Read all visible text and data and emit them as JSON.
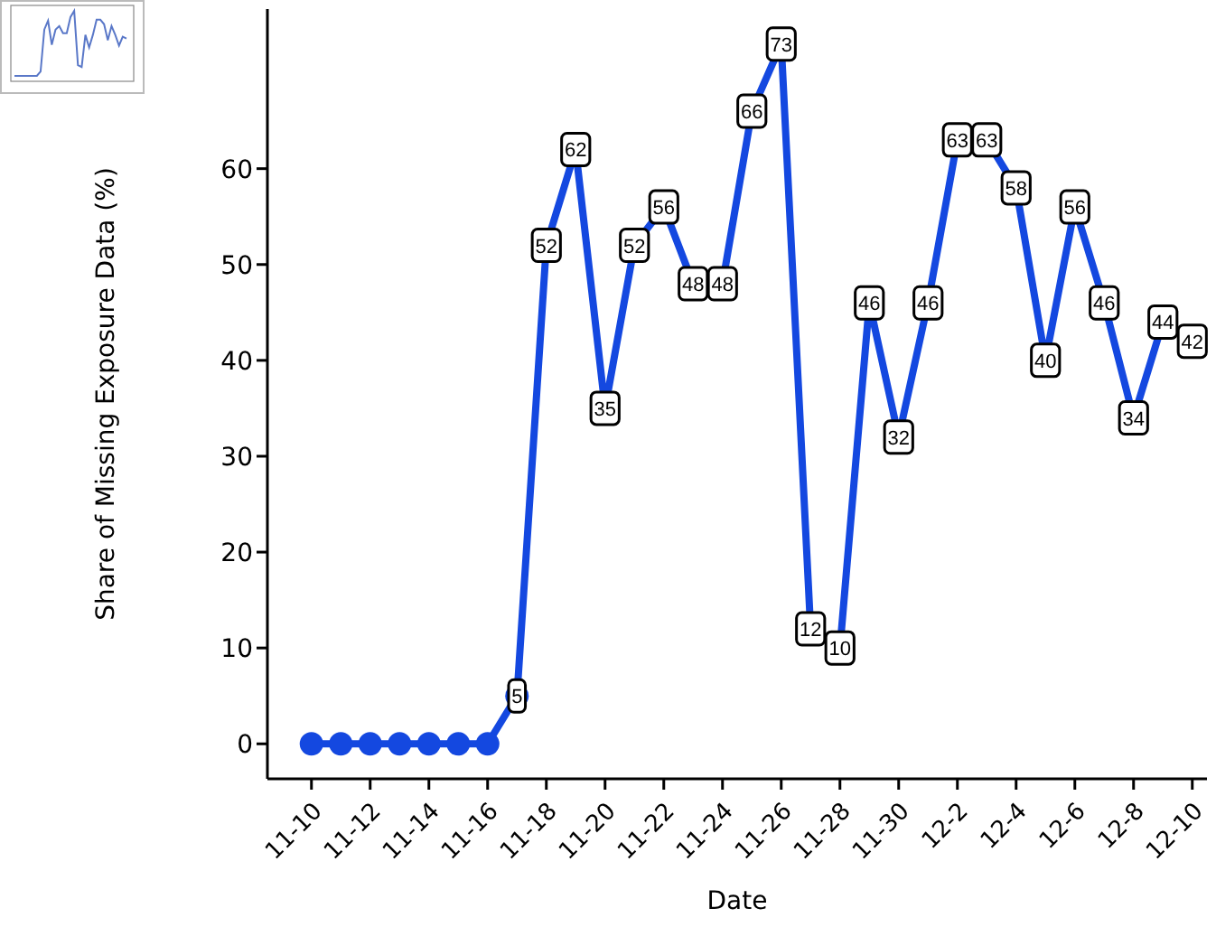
{
  "chart_data": {
    "type": "line",
    "xlabel": "Date",
    "ylabel": "Share of Missing Exposure Data (%)",
    "categories": [
      "11-10",
      null,
      "11-12",
      null,
      "11-14",
      null,
      "11-16",
      null,
      "11-18",
      null,
      "11-20",
      null,
      "11-22",
      null,
      "11-24",
      null,
      "11-26",
      null,
      "11-28",
      null,
      "11-30",
      null,
      "12-2",
      null,
      "12-4",
      null,
      "12-6",
      null,
      "12-8",
      null,
      "12-10"
    ],
    "series": [
      {
        "color": "#1448e0",
        "values": [
          0,
          0,
          0,
          0,
          0,
          0,
          0,
          5,
          52,
          62,
          35,
          52,
          56,
          48,
          48,
          66,
          73,
          12,
          10,
          46,
          32,
          46,
          63,
          63,
          58,
          40,
          56,
          46,
          34,
          44,
          42
        ],
        "value_labels": [
          null,
          null,
          null,
          null,
          null,
          null,
          null,
          "5",
          "52",
          "62",
          "35",
          "52",
          "56",
          "48",
          "48",
          "66",
          "73",
          "12",
          "10",
          "46",
          "32",
          "46",
          "63",
          "63",
          "58",
          "40",
          "56",
          "46",
          "34",
          "44",
          "42"
        ]
      }
    ],
    "ylim": [
      -3.65,
      76.65
    ],
    "yticks": [
      0,
      10,
      20,
      30,
      40,
      50,
      60
    ],
    "grid": false,
    "legend": false,
    "marker": "circle",
    "line_style": "solid"
  }
}
